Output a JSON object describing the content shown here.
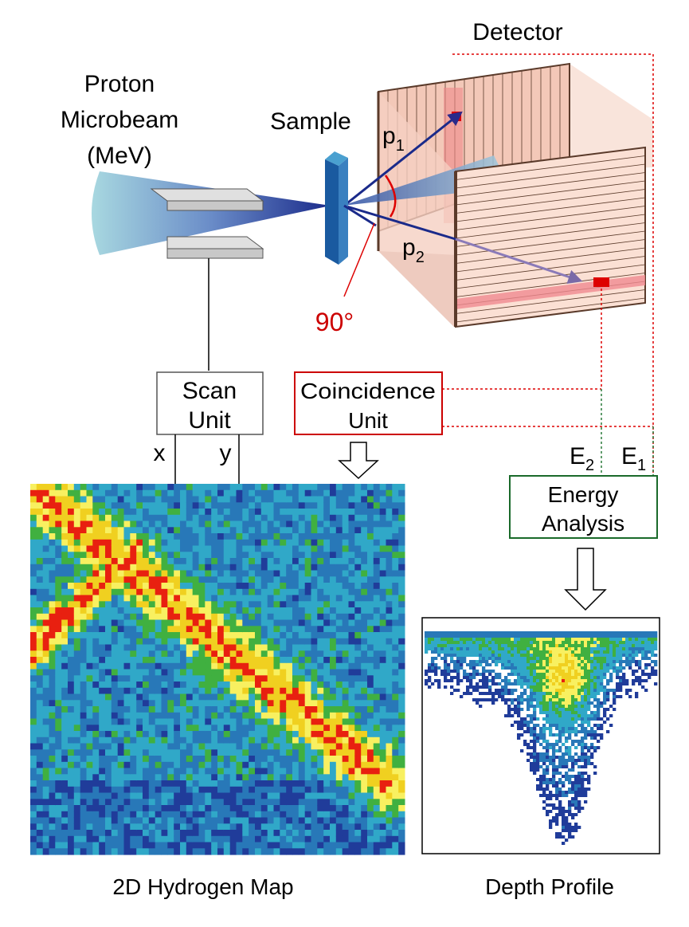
{
  "labels": {
    "detector": "Detector",
    "source": [
      "Proton",
      "Microbeam",
      "(MeV)"
    ],
    "sample": "Sample",
    "p1": {
      "base": "p",
      "sub": "1"
    },
    "p2": {
      "base": "p",
      "sub": "2"
    },
    "angle": "90°",
    "scan_unit": [
      "Scan",
      "Unit"
    ],
    "coincidence_unit": [
      "Coincidence",
      "Unit"
    ],
    "x": "x",
    "y": "y",
    "e2": {
      "base": "E",
      "sub": "2"
    },
    "e1": {
      "base": "E",
      "sub": "1"
    },
    "energy_analysis": [
      "Energy",
      "Analysis"
    ],
    "map_caption": "2D Hydrogen Map",
    "profile_caption": "Depth Profile"
  }
}
